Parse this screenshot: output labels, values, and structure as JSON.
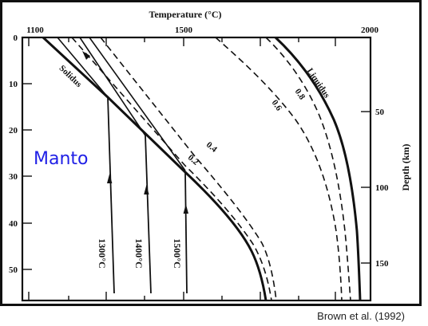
{
  "diagram": {
    "top_axis": {
      "title": "Temperature (°C)",
      "ticks": [
        "1100",
        "1500",
        "2000"
      ]
    },
    "left_axis": {
      "ticks": [
        "0",
        "10",
        "20",
        "30",
        "40",
        "50"
      ]
    },
    "right_axis": {
      "title": "Depth (km)",
      "ticks": [
        "50",
        "100",
        "150"
      ]
    },
    "curve_labels": {
      "solidus": "Solidus",
      "liquidus": "Liquidus",
      "melt_08": "0.8",
      "melt_06": "0.6",
      "melt_04": "0.4",
      "melt_02": "0.2"
    },
    "adiabat_labels": [
      "1300°C",
      "1400°C",
      "1500°C"
    ],
    "region_label": "Manto",
    "citation": "Brown et al. (1992)"
  },
  "colors": {
    "frame": "#111111",
    "curves": "#111111",
    "region_label": "#1f1fe6",
    "citation": "#222222"
  }
}
